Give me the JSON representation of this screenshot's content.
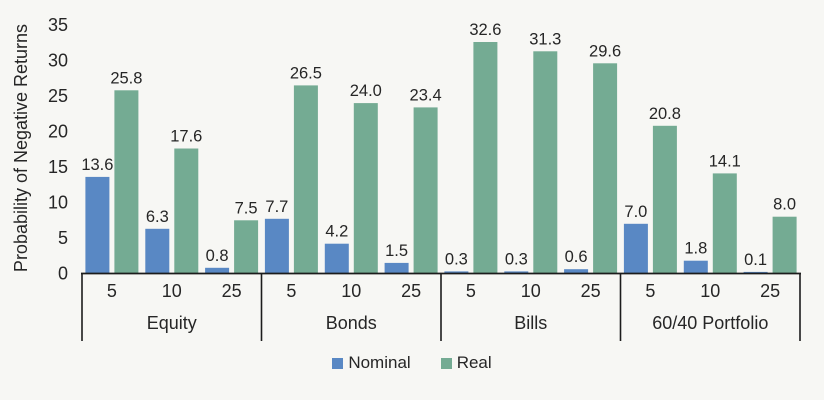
{
  "chart_data": {
    "type": "bar",
    "title": "",
    "ylabel": "Probability of Negative Returns",
    "xlabel": "",
    "ylim": [
      0,
      35
    ],
    "y_ticks": [
      0,
      5,
      10,
      15,
      20,
      25,
      30,
      35
    ],
    "grid": false,
    "data_labels": true,
    "legend_position": "bottom",
    "group_labels": [
      "Equity",
      "Bonds",
      "Bills",
      "60/40 Portfolio"
    ],
    "categories": [
      "5",
      "10",
      "25"
    ],
    "series": [
      {
        "name": "Nominal",
        "color": "#5988c4",
        "values": [
          [
            13.6,
            6.3,
            0.8
          ],
          [
            7.7,
            4.2,
            1.5
          ],
          [
            0.3,
            0.3,
            0.6
          ],
          [
            7.0,
            1.8,
            0.1
          ]
        ]
      },
      {
        "name": "Real",
        "color": "#74ab93",
        "values": [
          [
            25.8,
            17.6,
            7.5
          ],
          [
            26.5,
            24.0,
            23.4
          ],
          [
            32.6,
            31.3,
            29.6
          ],
          [
            20.8,
            14.1,
            8.0
          ]
        ]
      }
    ]
  },
  "colors": {
    "text": "#262626",
    "axis": "#1c1c1c",
    "background": "#f7f7f4"
  }
}
